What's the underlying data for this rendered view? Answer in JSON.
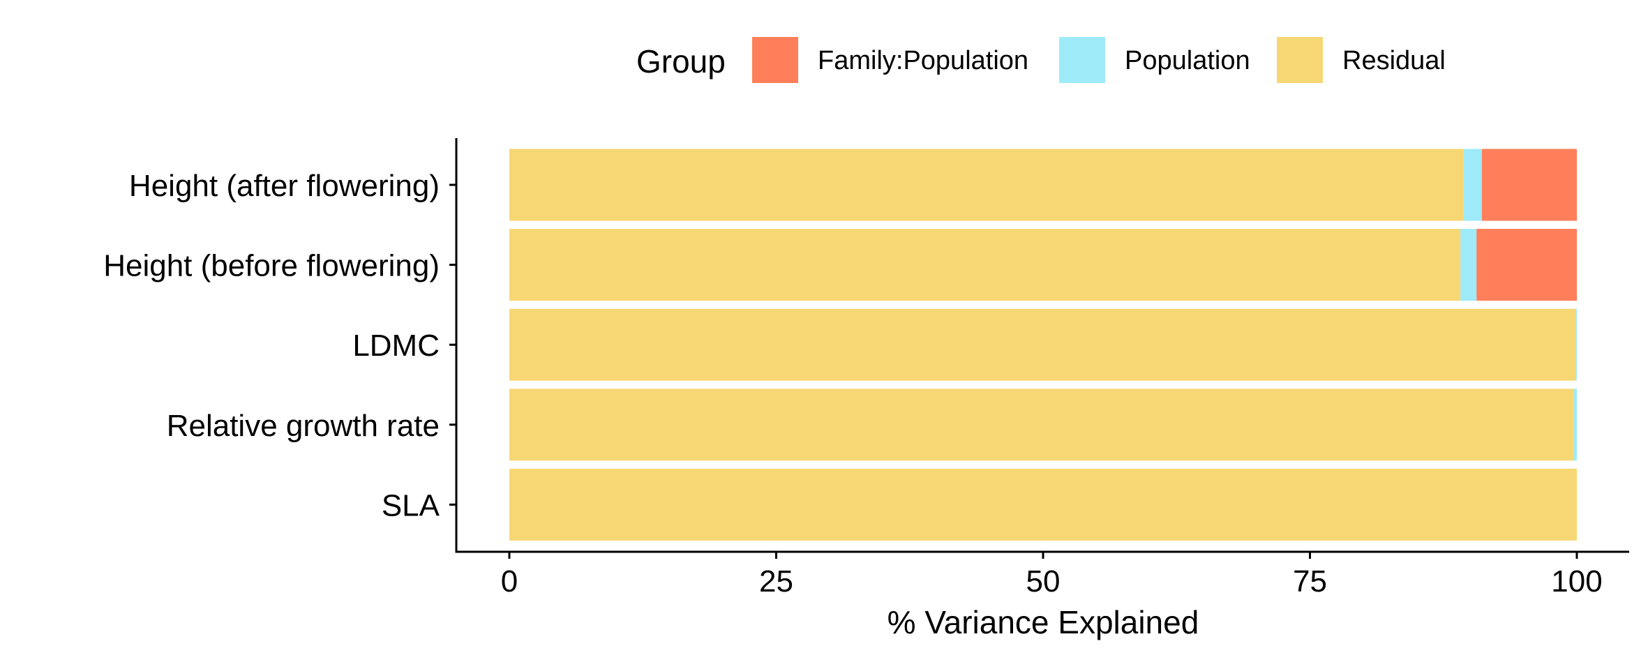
{
  "chart_data": {
    "type": "bar",
    "orientation": "horizontal",
    "stacked": true,
    "categories": [
      "Height (after flowering)",
      "Height (before flowering)",
      "LDMC",
      "Relative growth rate",
      "SLA"
    ],
    "series": [
      {
        "name": "Residual",
        "color": "#F7D774",
        "values": [
          89.4,
          89.1,
          99.9,
          99.7,
          100.0
        ]
      },
      {
        "name": "Population",
        "color": "#9EEAF9",
        "values": [
          1.7,
          1.5,
          0.1,
          0.3,
          0.0
        ]
      },
      {
        "name": "Family:Population",
        "color": "#FF7F5A",
        "values": [
          8.9,
          9.4,
          0.0,
          0.0,
          0.0
        ]
      }
    ],
    "xlabel": "% Variance Explained",
    "ylabel": "",
    "xlim": [
      0,
      100
    ],
    "xticks": [
      0,
      25,
      50,
      75,
      100
    ],
    "legend": {
      "title": "Group",
      "position": "top",
      "entries": [
        "Family:Population",
        "Population",
        "Residual"
      ]
    },
    "grid": false
  }
}
